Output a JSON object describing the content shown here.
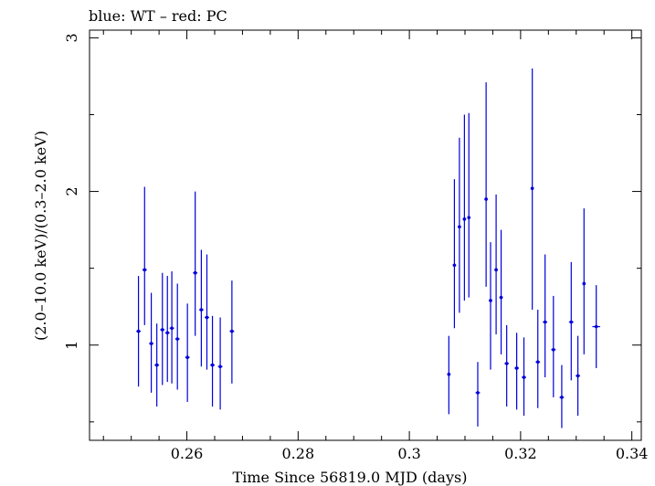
{
  "chart_data": {
    "type": "scatter",
    "title": "blue: WT – red: PC",
    "xlabel": "Time Since 56819.0 MJD (days)",
    "ylabel": "(2.0–10.0 keV)/(0.3–2.0 keV)",
    "xlim": [
      0.2425,
      0.3417
    ],
    "ylim": [
      0.38,
      3.05
    ],
    "xticks": [
      0.26,
      0.28,
      0.3,
      0.32,
      0.34
    ],
    "xtick_labels": [
      "0.26",
      "0.28",
      "0.3",
      "0.32",
      "0.34"
    ],
    "yticks": [
      1,
      2,
      3
    ],
    "ytick_labels": [
      "1",
      "2",
      "3"
    ],
    "grid": false,
    "colors": {
      "series": "#0000dd"
    },
    "series": [
      {
        "points": [
          {
            "x": 0.2513,
            "y": 1.09,
            "ylo": 0.73,
            "yhi": 1.45,
            "xerr": 0.0004
          },
          {
            "x": 0.2524,
            "y": 1.49,
            "ylo": 1.13,
            "yhi": 2.03,
            "xerr": 0.0004
          },
          {
            "x": 0.2536,
            "y": 1.01,
            "ylo": 0.69,
            "yhi": 1.34,
            "xerr": 0.0004
          },
          {
            "x": 0.2546,
            "y": 0.87,
            "ylo": 0.6,
            "yhi": 1.14,
            "xerr": 0.0004
          },
          {
            "x": 0.2556,
            "y": 1.1,
            "ylo": 0.74,
            "yhi": 1.47,
            "xerr": 0.0004
          },
          {
            "x": 0.2565,
            "y": 1.08,
            "ylo": 0.76,
            "yhi": 1.45,
            "xerr": 0.0004
          },
          {
            "x": 0.2573,
            "y": 1.11,
            "ylo": 0.75,
            "yhi": 1.48,
            "xerr": 0.0004
          },
          {
            "x": 0.2583,
            "y": 1.04,
            "ylo": 0.71,
            "yhi": 1.4,
            "xerr": 0.0004
          },
          {
            "x": 0.2601,
            "y": 0.92,
            "ylo": 0.63,
            "yhi": 1.27,
            "xerr": 0.0004
          },
          {
            "x": 0.2615,
            "y": 1.47,
            "ylo": 1.06,
            "yhi": 2.0,
            "xerr": 0.0004
          },
          {
            "x": 0.2626,
            "y": 1.23,
            "ylo": 0.86,
            "yhi": 1.62,
            "xerr": 0.0004
          },
          {
            "x": 0.2636,
            "y": 1.18,
            "ylo": 0.84,
            "yhi": 1.59,
            "xerr": 0.0004
          },
          {
            "x": 0.2646,
            "y": 0.87,
            "ylo": 0.6,
            "yhi": 1.19,
            "xerr": 0.0004
          },
          {
            "x": 0.266,
            "y": 0.86,
            "ylo": 0.58,
            "yhi": 1.18,
            "xerr": 0.0004
          },
          {
            "x": 0.2681,
            "y": 1.09,
            "ylo": 0.75,
            "yhi": 1.42,
            "xerr": 0.0004
          },
          {
            "x": 0.3071,
            "y": 0.81,
            "ylo": 0.55,
            "yhi": 1.06,
            "xerr": 0.0003
          },
          {
            "x": 0.3081,
            "y": 1.52,
            "ylo": 1.11,
            "yhi": 2.08,
            "xerr": 0.0003
          },
          {
            "x": 0.309,
            "y": 1.77,
            "ylo": 1.21,
            "yhi": 2.35,
            "xerr": 0.0003
          },
          {
            "x": 0.3099,
            "y": 1.82,
            "ylo": 1.29,
            "yhi": 2.5,
            "xerr": 0.0003
          },
          {
            "x": 0.3107,
            "y": 1.83,
            "ylo": 1.31,
            "yhi": 2.51,
            "xerr": 0.0003
          },
          {
            "x": 0.3123,
            "y": 0.69,
            "ylo": 0.47,
            "yhi": 0.89,
            "xerr": 0.0004
          },
          {
            "x": 0.3138,
            "y": 1.95,
            "ylo": 1.38,
            "yhi": 2.71,
            "xerr": 0.0003
          },
          {
            "x": 0.3146,
            "y": 1.29,
            "ylo": 0.84,
            "yhi": 1.67,
            "xerr": 0.0003
          },
          {
            "x": 0.3156,
            "y": 1.49,
            "ylo": 1.07,
            "yhi": 1.98,
            "xerr": 0.0003
          },
          {
            "x": 0.3165,
            "y": 1.31,
            "ylo": 0.94,
            "yhi": 1.75,
            "xerr": 0.0003
          },
          {
            "x": 0.3175,
            "y": 0.88,
            "ylo": 0.6,
            "yhi": 1.13,
            "xerr": 0.0004
          },
          {
            "x": 0.3193,
            "y": 0.85,
            "ylo": 0.58,
            "yhi": 1.08,
            "xerr": 0.0004
          },
          {
            "x": 0.3206,
            "y": 0.79,
            "ylo": 0.54,
            "yhi": 1.05,
            "xerr": 0.0004
          },
          {
            "x": 0.3221,
            "y": 2.02,
            "ylo": 1.23,
            "yhi": 2.8,
            "xerr": 0.0003
          },
          {
            "x": 0.3231,
            "y": 0.89,
            "ylo": 0.59,
            "yhi": 1.23,
            "xerr": 0.0004
          },
          {
            "x": 0.3244,
            "y": 1.15,
            "ylo": 0.79,
            "yhi": 1.59,
            "xerr": 0.0004
          },
          {
            "x": 0.3259,
            "y": 0.97,
            "ylo": 0.66,
            "yhi": 1.32,
            "xerr": 0.0004
          },
          {
            "x": 0.3274,
            "y": 0.66,
            "ylo": 0.46,
            "yhi": 0.87,
            "xerr": 0.0004
          },
          {
            "x": 0.3291,
            "y": 1.15,
            "ylo": 0.77,
            "yhi": 1.54,
            "xerr": 0.0004
          },
          {
            "x": 0.3303,
            "y": 0.8,
            "ylo": 0.54,
            "yhi": 1.06,
            "xerr": 0.0004
          },
          {
            "x": 0.3314,
            "y": 1.4,
            "ylo": 0.94,
            "yhi": 1.89,
            "xerr": 0.0003
          },
          {
            "x": 0.3336,
            "y": 1.12,
            "ylo": 0.85,
            "yhi": 1.39,
            "xerr": 0.0007
          }
        ]
      }
    ]
  }
}
